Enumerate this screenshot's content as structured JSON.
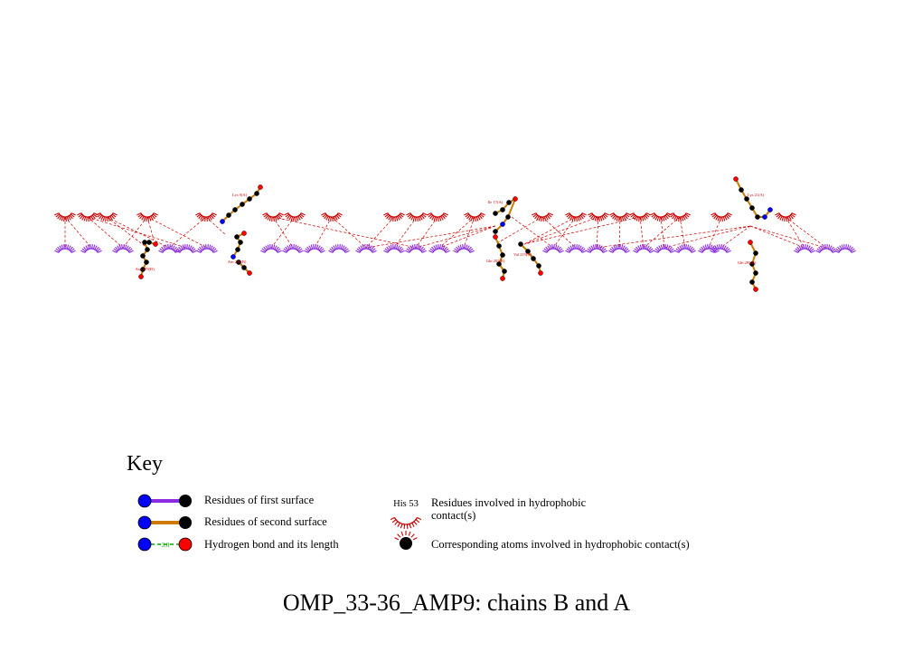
{
  "title": "OMP_33-36_AMP9: chains B and A",
  "key": {
    "heading": "Key",
    "items": {
      "first_surface": "Residues of first surface",
      "second_surface": "Residues of second surface",
      "hbond": "Hydrogen bond and its length",
      "hbond_sample_length": "3.0",
      "hydrophobic_example": "His 53",
      "hydrophobic": "Residues involved in hydrophobic contact(s)",
      "hydrophobic_atoms": "Corresponding atoms involved in hydrophobic contact(s)"
    }
  },
  "colors": {
    "first_surface_bond": "#8b2be2",
    "second_surface_bond": "#cc7a00",
    "hbond": "#00aa00",
    "hydrophobic_arc_chain_b": "#cc0000",
    "hydrophobic_arc_chain_a": "#8a2be2",
    "interaction_line": "#cc0000",
    "nitrogen": "#0000ff",
    "oxygen": "#ff0000",
    "carbon": "#000000"
  },
  "labels": {
    "residue_1": "Asp 278(B)",
    "residue_2": "Lys 9(A)",
    "residue_3": "Arn 280(B)",
    "residue_4": "Ile 17(A)",
    "residue_5": "Gln 281(B)",
    "residue_6": "Val 219(B)",
    "residue_7": "Lys 21(A)",
    "residue_8": "Gln 285(B)"
  }
}
